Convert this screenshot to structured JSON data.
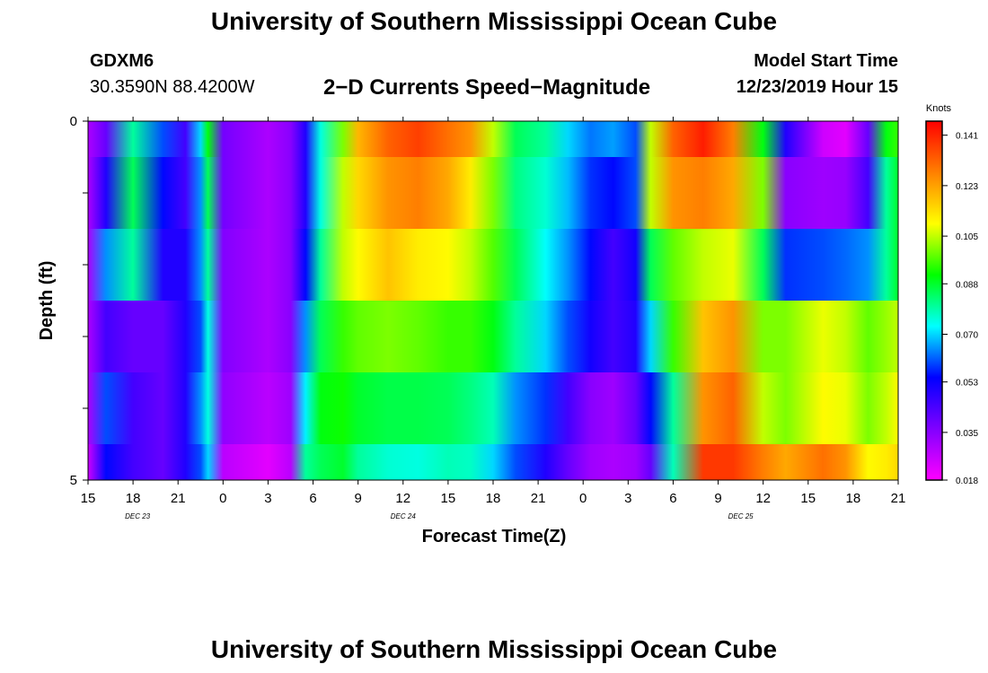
{
  "header": {
    "title": "University of Southern Mississippi Ocean Cube",
    "station_id": "GDXM6",
    "station_coords": "30.3590N 88.4200W",
    "chart_title": "2−D Currents Speed−Magnitude",
    "start_label": "Model Start Time",
    "start_value": "12/23/2019 Hour 15"
  },
  "footer": {
    "title": "University of Southern Mississippi Ocean Cube"
  },
  "chart_data": {
    "type": "heatmap",
    "title": "2−D Currents Speed−Magnitude",
    "xlabel": "Forecast Time(Z)",
    "ylabel": "Depth (ft)",
    "xlim": [
      0,
      54
    ],
    "ylim": [
      0,
      5
    ],
    "x_tick_values": [
      0,
      3,
      6,
      9,
      12,
      15,
      18,
      21,
      24,
      27,
      30,
      33,
      36,
      39,
      42,
      45,
      48,
      51,
      54
    ],
    "x_tick_labels": [
      "15",
      "18",
      "21",
      "0",
      "3",
      "6",
      "9",
      "12",
      "15",
      "18",
      "21",
      "0",
      "3",
      "6",
      "9",
      "12",
      "15",
      "18",
      "21"
    ],
    "y_tick_labels": [
      {
        "value": 0,
        "label": "0"
      },
      {
        "value": 5,
        "label": "5"
      }
    ],
    "date_labels": [
      {
        "hour": 3.3,
        "label": "DEC 23"
      },
      {
        "hour": 21.0,
        "label": "DEC 24"
      },
      {
        "hour": 43.5,
        "label": "DEC 25"
      }
    ],
    "colorbar": {
      "unit": "Knots",
      "min": 0.018,
      "max": 0.146,
      "ticks": [
        "0.141",
        "0.123",
        "0.105",
        "0.088",
        "0.070",
        "0.053",
        "0.035",
        "0.018"
      ],
      "tick_values": [
        0.141,
        0.123,
        0.105,
        0.088,
        0.07,
        0.053,
        0.035,
        0.018
      ],
      "colors": [
        "#ff00ff",
        "#8000ff",
        "#0000ff",
        "#00ffff",
        "#00ff00",
        "#ffff00",
        "#ff8000",
        "#ff0000"
      ]
    },
    "x_hours": [
      0,
      1.2,
      3,
      5,
      6.5,
      7.5,
      8,
      9,
      12,
      13.5,
      14.5,
      15.5,
      17,
      18,
      20,
      22,
      24,
      25.5,
      27,
      28.5,
      30.5,
      32,
      33.5,
      35,
      36.5,
      37.5,
      39,
      41,
      43,
      45,
      46.5,
      49,
      50.5,
      52,
      53.2,
      54
    ],
    "depth_rows": [
      {
        "depth": [
          0,
          0.5
        ],
        "values": [
          0.03,
          0.04,
          0.08,
          0.06,
          0.045,
          0.07,
          0.09,
          0.038,
          0.03,
          0.035,
          0.05,
          0.075,
          0.1,
          0.12,
          0.132,
          0.137,
          0.13,
          0.125,
          0.105,
          0.085,
          0.08,
          0.07,
          0.063,
          0.066,
          0.06,
          0.105,
          0.132,
          0.142,
          0.128,
          0.09,
          0.05,
          0.025,
          0.022,
          0.04,
          0.09,
          0.095
        ]
      },
      {
        "depth": [
          0.5,
          1.5
        ],
        "values": [
          0.03,
          0.05,
          0.085,
          0.055,
          0.045,
          0.065,
          0.085,
          0.038,
          0.03,
          0.035,
          0.05,
          0.075,
          0.105,
          0.115,
          0.125,
          0.128,
          0.122,
          0.112,
          0.1,
          0.082,
          0.076,
          0.068,
          0.058,
          0.055,
          0.06,
          0.105,
          0.125,
          0.128,
          0.122,
          0.1,
          0.035,
          0.032,
          0.033,
          0.045,
          0.08,
          0.088
        ]
      },
      {
        "depth": [
          1.5,
          2.5
        ],
        "values": [
          0.03,
          0.065,
          0.08,
          0.05,
          0.05,
          0.065,
          0.08,
          0.036,
          0.03,
          0.035,
          0.055,
          0.08,
          0.105,
          0.11,
          0.118,
          0.112,
          0.11,
          0.105,
          0.097,
          0.085,
          0.073,
          0.065,
          0.055,
          0.045,
          0.052,
          0.085,
          0.098,
          0.105,
          0.108,
          0.085,
          0.058,
          0.06,
          0.062,
          0.065,
          0.08,
          0.088
        ]
      },
      {
        "depth": [
          2.5,
          3.5
        ],
        "values": [
          0.03,
          0.045,
          0.04,
          0.04,
          0.05,
          0.06,
          0.075,
          0.036,
          0.03,
          0.035,
          0.065,
          0.085,
          0.095,
          0.098,
          0.1,
          0.098,
          0.095,
          0.095,
          0.09,
          0.08,
          0.07,
          0.06,
          0.052,
          0.045,
          0.05,
          0.07,
          0.095,
          0.118,
          0.125,
          0.1,
          0.1,
          0.108,
          0.105,
          0.098,
          0.102,
          0.105
        ]
      },
      {
        "depth": [
          3.5,
          4.5
        ],
        "values": [
          0.03,
          0.06,
          0.045,
          0.04,
          0.05,
          0.065,
          0.075,
          0.034,
          0.028,
          0.032,
          0.072,
          0.09,
          0.092,
          0.088,
          0.086,
          0.086,
          0.085,
          0.082,
          0.078,
          0.065,
          0.058,
          0.045,
          0.035,
          0.032,
          0.04,
          0.055,
          0.08,
          0.125,
          0.132,
          0.105,
          0.1,
          0.11,
          0.108,
          0.1,
          0.105,
          0.11
        ]
      },
      {
        "depth": [
          4.5,
          5
        ],
        "values": [
          0.025,
          0.055,
          0.045,
          0.04,
          0.05,
          0.06,
          0.07,
          0.028,
          0.022,
          0.028,
          0.08,
          0.085,
          0.088,
          0.08,
          0.076,
          0.075,
          0.078,
          0.077,
          0.07,
          0.06,
          0.05,
          0.04,
          0.032,
          0.03,
          0.032,
          0.04,
          0.078,
          0.138,
          0.138,
          0.128,
          0.122,
          0.13,
          0.125,
          0.11,
          0.112,
          0.115
        ]
      }
    ]
  }
}
